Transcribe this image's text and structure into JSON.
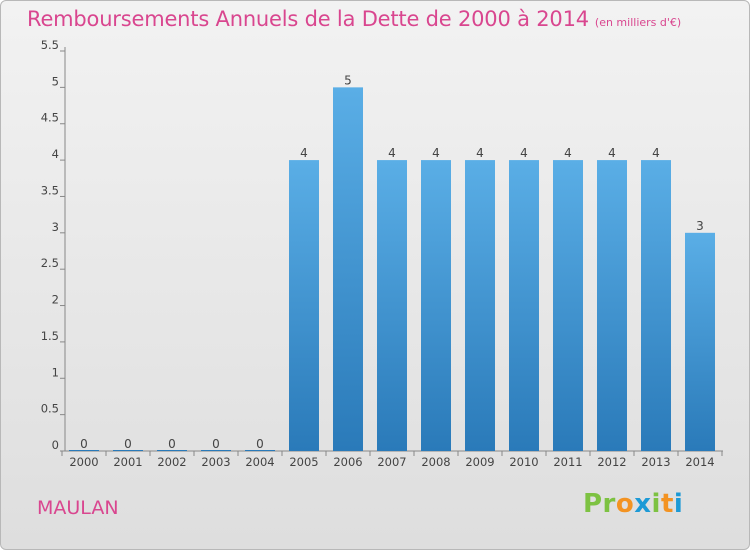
{
  "header": {
    "title": "Remboursements Annuels de la Dette de 2000 à 2014",
    "unit": "(en milliers d'€)"
  },
  "footer": {
    "commune": "MAULAN",
    "logo": "Proxiti"
  },
  "colors": {
    "title": "#d9468f",
    "bar_top": "#5aaee6",
    "bar_bottom": "#2a7ab9",
    "background_top": "#f2f2f2",
    "background_bottom": "#dedede"
  },
  "chart_data": {
    "type": "bar",
    "title": "Remboursements Annuels de la Dette de 2000 à 2014",
    "subtitle": "(en milliers d'€)",
    "xlabel": "",
    "ylabel": "",
    "categories": [
      "2000",
      "2001",
      "2002",
      "2003",
      "2004",
      "2005",
      "2006",
      "2007",
      "2008",
      "2009",
      "2010",
      "2011",
      "2012",
      "2013",
      "2014"
    ],
    "values": [
      0,
      0,
      0,
      0,
      0,
      4,
      5,
      4,
      4,
      4,
      4,
      4,
      4,
      4,
      3
    ],
    "y_ticks": [
      "0",
      "0.5",
      "1",
      "1.5",
      "2",
      "2.5",
      "3",
      "3.5",
      "4",
      "4.5",
      "5",
      "5.5"
    ],
    "ylim": [
      0,
      5.5
    ],
    "grid": false,
    "legend": "none",
    "data_labels": true
  }
}
